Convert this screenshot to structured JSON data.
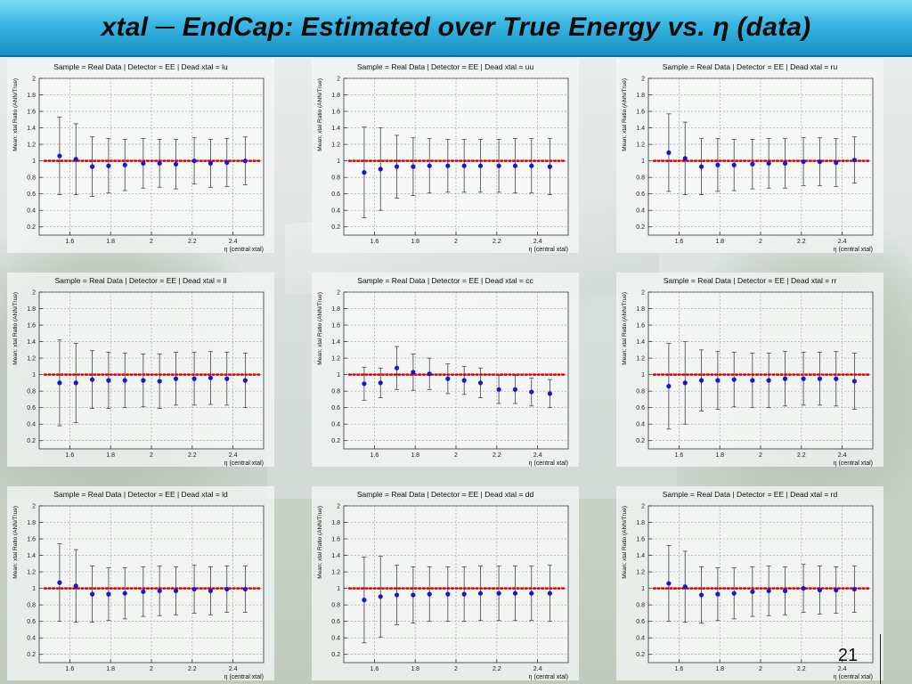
{
  "slide": {
    "title": "xtal ─ EndCap: Estimated over True Energy vs. η  (data)",
    "page_number": "21"
  },
  "colors": {
    "header_top": "#7fdcf5",
    "header_bottom": "#1591c4",
    "marker": "#1515dd",
    "reference_line": "#dd0000",
    "error_bar": "#444444"
  },
  "chart_data": [
    {
      "type": "scatter",
      "title": "Sample = Real Data | Detector = EE | Dead xtal = lu",
      "xlabel": "η (central xtal)",
      "ylabel": "Mean: xtal Ratio (ANN/True)",
      "xlim": [
        1.45,
        2.55
      ],
      "ylim": [
        0.1,
        2.0
      ],
      "xticks": [
        "1.6",
        "1.8",
        "2",
        "2.2",
        "2.4"
      ],
      "yticks": [
        "0.2",
        "0.4",
        "0.6",
        "0.8",
        "1",
        "1.2",
        "1.4",
        "1.6",
        "1.8",
        "2"
      ],
      "grid": true,
      "reference_y": 1.0,
      "x": [
        1.55,
        1.63,
        1.71,
        1.79,
        1.87,
        1.96,
        2.04,
        2.12,
        2.21,
        2.29,
        2.37,
        2.46
      ],
      "y": [
        1.06,
        1.02,
        0.93,
        0.94,
        0.95,
        0.97,
        0.97,
        0.96,
        1.0,
        0.97,
        0.98,
        1.0
      ],
      "err": [
        0.47,
        0.43,
        0.36,
        0.33,
        0.31,
        0.3,
        0.29,
        0.3,
        0.28,
        0.29,
        0.29,
        0.29
      ]
    },
    {
      "type": "scatter",
      "title": "Sample = Real Data | Detector = EE | Dead xtal = uu",
      "xlabel": "η (central xtal)",
      "ylabel": "Mean: xtal Ratio (ANN/True)",
      "xlim": [
        1.45,
        2.55
      ],
      "ylim": [
        0.1,
        2.0
      ],
      "xticks": [
        "1.6",
        "1.8",
        "2",
        "2.2",
        "2.4"
      ],
      "yticks": [
        "0.2",
        "0.4",
        "0.6",
        "0.8",
        "1",
        "1.2",
        "1.4",
        "1.6",
        "1.8",
        "2"
      ],
      "grid": true,
      "reference_y": 1.0,
      "x": [
        1.55,
        1.63,
        1.71,
        1.79,
        1.87,
        1.96,
        2.04,
        2.12,
        2.21,
        2.29,
        2.37,
        2.46
      ],
      "y": [
        0.86,
        0.9,
        0.93,
        0.93,
        0.94,
        0.94,
        0.94,
        0.94,
        0.94,
        0.94,
        0.94,
        0.93
      ],
      "err": [
        0.55,
        0.5,
        0.38,
        0.35,
        0.33,
        0.32,
        0.32,
        0.32,
        0.32,
        0.33,
        0.33,
        0.34
      ]
    },
    {
      "type": "scatter",
      "title": "Sample = Real Data | Detector = EE | Dead xtal = ru",
      "xlabel": "η (central xtal)",
      "ylabel": "Mean: xtal Ratio (ANN/True)",
      "xlim": [
        1.45,
        2.55
      ],
      "ylim": [
        0.1,
        2.0
      ],
      "xticks": [
        "1.6",
        "1.8",
        "2",
        "2.2",
        "2.4"
      ],
      "yticks": [
        "0.2",
        "0.4",
        "0.6",
        "0.8",
        "1",
        "1.2",
        "1.4",
        "1.6",
        "1.8",
        "2"
      ],
      "grid": true,
      "reference_y": 1.0,
      "x": [
        1.55,
        1.63,
        1.71,
        1.79,
        1.87,
        1.96,
        2.04,
        2.12,
        2.21,
        2.29,
        2.37,
        2.46
      ],
      "y": [
        1.1,
        1.03,
        0.93,
        0.95,
        0.95,
        0.96,
        0.97,
        0.97,
        0.99,
        0.99,
        0.98,
        1.01
      ],
      "err": [
        0.47,
        0.44,
        0.34,
        0.32,
        0.31,
        0.3,
        0.3,
        0.3,
        0.29,
        0.29,
        0.29,
        0.28
      ]
    },
    {
      "type": "scatter",
      "title": "Sample = Real Data | Detector = EE | Dead xtal = ll",
      "xlabel": "η (central xtal)",
      "ylabel": "Mean: xtal Ratio (ANN/True)",
      "xlim": [
        1.45,
        2.55
      ],
      "ylim": [
        0.1,
        2.0
      ],
      "xticks": [
        "1.6",
        "1.8",
        "2",
        "2.2",
        "2.4"
      ],
      "yticks": [
        "0.2",
        "0.4",
        "0.6",
        "0.8",
        "1",
        "1.2",
        "1.4",
        "1.6",
        "1.8",
        "2"
      ],
      "grid": true,
      "reference_y": 1.0,
      "x": [
        1.55,
        1.63,
        1.71,
        1.79,
        1.87,
        1.96,
        2.04,
        2.12,
        2.21,
        2.29,
        2.37,
        2.46
      ],
      "y": [
        0.9,
        0.9,
        0.94,
        0.93,
        0.93,
        0.93,
        0.92,
        0.95,
        0.95,
        0.96,
        0.95,
        0.93
      ],
      "err": [
        0.52,
        0.48,
        0.35,
        0.34,
        0.33,
        0.32,
        0.33,
        0.32,
        0.32,
        0.32,
        0.32,
        0.33
      ]
    },
    {
      "type": "scatter",
      "title": "Sample = Real Data | Detector = EE | Dead xtal = cc",
      "xlabel": "η (central xtal)",
      "ylabel": "Mean: xtal Ratio (ANN/True)",
      "xlim": [
        1.45,
        2.55
      ],
      "ylim": [
        0.1,
        2.0
      ],
      "xticks": [
        "1.6",
        "1.8",
        "2",
        "2.2",
        "2.4"
      ],
      "yticks": [
        "0.2",
        "0.4",
        "0.6",
        "0.8",
        "1",
        "1.2",
        "1.4",
        "1.6",
        "1.8",
        "2"
      ],
      "grid": true,
      "reference_y": 1.0,
      "x": [
        1.55,
        1.63,
        1.71,
        1.79,
        1.87,
        1.96,
        2.04,
        2.12,
        2.21,
        2.29,
        2.37,
        2.46
      ],
      "y": [
        0.89,
        0.9,
        1.08,
        1.03,
        1.01,
        0.95,
        0.93,
        0.9,
        0.82,
        0.82,
        0.79,
        0.77
      ],
      "err": [
        0.2,
        0.18,
        0.26,
        0.22,
        0.19,
        0.18,
        0.17,
        0.18,
        0.17,
        0.17,
        0.17,
        0.17
      ]
    },
    {
      "type": "scatter",
      "title": "Sample = Real Data | Detector = EE | Dead xtal = rr",
      "xlabel": "η (central xtal)",
      "ylabel": "Mean: xtal Ratio (ANN/True)",
      "xlim": [
        1.45,
        2.55
      ],
      "ylim": [
        0.1,
        2.0
      ],
      "xticks": [
        "1.6",
        "1.8",
        "2",
        "2.2",
        "2.4"
      ],
      "yticks": [
        "0.2",
        "0.4",
        "0.6",
        "0.8",
        "1",
        "1.2",
        "1.4",
        "1.6",
        "1.8",
        "2"
      ],
      "grid": true,
      "reference_y": 1.0,
      "x": [
        1.55,
        1.63,
        1.71,
        1.79,
        1.87,
        1.96,
        2.04,
        2.12,
        2.21,
        2.29,
        2.37,
        2.46
      ],
      "y": [
        0.86,
        0.9,
        0.93,
        0.93,
        0.94,
        0.93,
        0.93,
        0.95,
        0.95,
        0.95,
        0.95,
        0.92
      ],
      "err": [
        0.52,
        0.5,
        0.37,
        0.35,
        0.33,
        0.33,
        0.33,
        0.33,
        0.32,
        0.32,
        0.33,
        0.34
      ]
    },
    {
      "type": "scatter",
      "title": "Sample = Real Data | Detector = EE | Dead xtal = ld",
      "xlabel": "η (central xtal)",
      "ylabel": "Mean: xtal Ratio (ANN/True)",
      "xlim": [
        1.45,
        2.55
      ],
      "ylim": [
        0.1,
        2.0
      ],
      "xticks": [
        "1.6",
        "1.8",
        "2",
        "2.2",
        "2.4"
      ],
      "yticks": [
        "0.2",
        "0.4",
        "0.6",
        "0.8",
        "1",
        "1.2",
        "1.4",
        "1.6",
        "1.8",
        "2"
      ],
      "grid": true,
      "reference_y": 1.0,
      "x": [
        1.55,
        1.63,
        1.71,
        1.79,
        1.87,
        1.96,
        2.04,
        2.12,
        2.21,
        2.29,
        2.37,
        2.46
      ],
      "y": [
        1.07,
        1.03,
        0.93,
        0.93,
        0.94,
        0.96,
        0.97,
        0.97,
        0.99,
        0.97,
        0.99,
        0.99
      ],
      "err": [
        0.47,
        0.44,
        0.34,
        0.32,
        0.31,
        0.3,
        0.3,
        0.29,
        0.29,
        0.29,
        0.28,
        0.28
      ]
    },
    {
      "type": "scatter",
      "title": "Sample = Real Data | Detector = EE | Dead xtal = dd",
      "xlabel": "η (central xtal)",
      "ylabel": "Mean: xtal Ratio (ANN/True)",
      "xlim": [
        1.45,
        2.55
      ],
      "ylim": [
        0.1,
        2.0
      ],
      "xticks": [
        "1.6",
        "1.8",
        "2",
        "2.2",
        "2.4"
      ],
      "yticks": [
        "0.2",
        "0.4",
        "0.6",
        "0.8",
        "1",
        "1.2",
        "1.4",
        "1.6",
        "1.8",
        "2"
      ],
      "grid": true,
      "reference_y": 1.0,
      "x": [
        1.55,
        1.63,
        1.71,
        1.79,
        1.87,
        1.96,
        2.04,
        2.12,
        2.21,
        2.29,
        2.37,
        2.46
      ],
      "y": [
        0.86,
        0.9,
        0.92,
        0.92,
        0.93,
        0.93,
        0.93,
        0.94,
        0.94,
        0.94,
        0.94,
        0.94
      ],
      "err": [
        0.52,
        0.49,
        0.36,
        0.34,
        0.33,
        0.33,
        0.33,
        0.33,
        0.33,
        0.33,
        0.33,
        0.34
      ]
    },
    {
      "type": "scatter",
      "title": "Sample = Real Data | Detector = EE | Dead xtal = rd",
      "xlabel": "η (central xtal)",
      "ylabel": "Mean: xtal Ratio (ANN/True)",
      "xlim": [
        1.45,
        2.55
      ],
      "ylim": [
        0.1,
        2.0
      ],
      "xticks": [
        "1.6",
        "1.8",
        "2",
        "2.2",
        "2.4"
      ],
      "yticks": [
        "0.2",
        "0.4",
        "0.6",
        "0.8",
        "1",
        "1.2",
        "1.4",
        "1.6",
        "1.8",
        "2"
      ],
      "grid": true,
      "reference_y": 1.0,
      "x": [
        1.55,
        1.63,
        1.71,
        1.79,
        1.87,
        1.96,
        2.04,
        2.12,
        2.21,
        2.29,
        2.37,
        2.46
      ],
      "y": [
        1.06,
        1.02,
        0.92,
        0.93,
        0.94,
        0.96,
        0.97,
        0.97,
        1.0,
        0.98,
        0.98,
        0.99
      ],
      "err": [
        0.46,
        0.43,
        0.34,
        0.32,
        0.31,
        0.3,
        0.3,
        0.29,
        0.29,
        0.29,
        0.28,
        0.28
      ]
    }
  ]
}
